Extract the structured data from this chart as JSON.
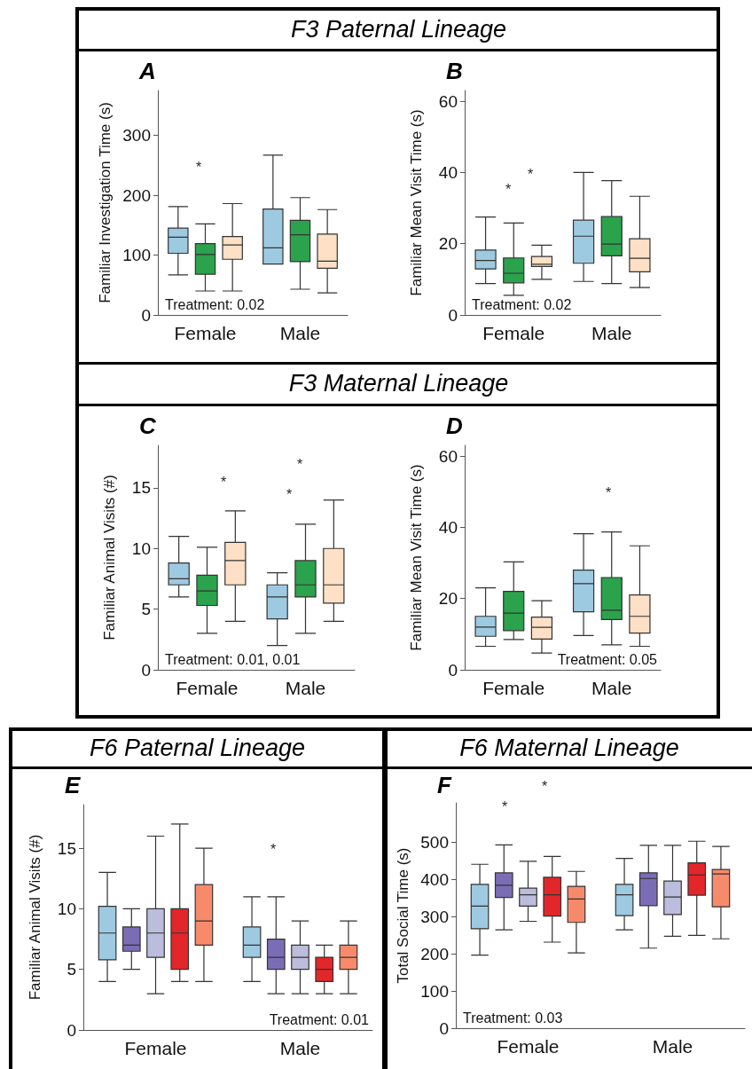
{
  "chart_data": [
    {
      "type": "box",
      "title": "F3 Paternal Lineage",
      "subtitle": "A",
      "ylabel": "Familiar Investigation Time (s)",
      "categories": [
        "Female",
        "Male"
      ],
      "ylim": [
        0,
        375
      ],
      "yticks": [
        0,
        100,
        200,
        300
      ],
      "series": [
        {
          "color": "#9ecae1",
          "boxes": [
            {
              "low": 67,
              "q1": 103,
              "median": 130,
              "q3": 145,
              "high": 181
            },
            {
              "low": 85,
              "q1": 85,
              "median": 112,
              "q3": 177,
              "high": 267
            }
          ]
        },
        {
          "color": "#2ba24c",
          "boxes": [
            {
              "low": 40,
              "q1": 68,
              "median": 101,
              "q3": 119,
              "high": 152
            },
            {
              "low": 43,
              "q1": 89,
              "median": 134,
              "q3": 158,
              "high": 196
            }
          ]
        },
        {
          "color": "#fde0c5",
          "boxes": [
            {
              "low": 40,
              "q1": 93,
              "median": 117,
              "q3": 131,
              "high": 186
            },
            {
              "low": 37,
              "q1": 78,
              "median": 90,
              "q3": 135,
              "high": 176
            }
          ]
        }
      ],
      "annotations": [
        "*",
        "Treatment: 0.02"
      ]
    },
    {
      "type": "box",
      "subtitle": "B",
      "ylabel": "Familiar Mean Visit Time (s)",
      "categories": [
        "Female",
        "Male"
      ],
      "ylim": [
        0,
        63
      ],
      "yticks": [
        0,
        20,
        40,
        60
      ],
      "series": [
        {
          "color": "#9ecae1",
          "boxes": [
            {
              "low": 8.8,
              "q1": 12.9,
              "median": 15.3,
              "q3": 18.2,
              "high": 27.5
            },
            {
              "low": 9.4,
              "q1": 14.5,
              "median": 22.1,
              "q3": 26.6,
              "high": 40
            }
          ]
        },
        {
          "color": "#2ba24c",
          "boxes": [
            {
              "low": 5.5,
              "q1": 9,
              "median": 11.7,
              "q3": 16,
              "high": 25.8
            },
            {
              "low": 8.8,
              "q1": 16.6,
              "median": 19.9,
              "q3": 27.6,
              "high": 37.7
            }
          ]
        },
        {
          "color": "#fde0c5",
          "boxes": [
            {
              "low": 10,
              "q1": 13.6,
              "median": 14.2,
              "q3": 16.4,
              "high": 19.6
            },
            {
              "low": 7.7,
              "q1": 12.1,
              "median": 15.9,
              "q3": 21.4,
              "high": 33.3
            }
          ]
        }
      ],
      "annotations": [
        "*",
        "*",
        "Treatment: 0.02"
      ]
    },
    {
      "type": "box",
      "title": "F3 Maternal Lineage",
      "subtitle": "C",
      "ylabel": "Familiar Animal Visits (#)",
      "categories": [
        "Female",
        "Male"
      ],
      "ylim": [
        0,
        18.5
      ],
      "yticks": [
        0,
        5,
        10,
        15
      ],
      "series": [
        {
          "color": "#9ecae1",
          "boxes": [
            {
              "low": 6,
              "q1": 7,
              "median": 7.5,
              "q3": 8.8,
              "high": 11
            },
            {
              "low": 2,
              "q1": 4.2,
              "median": 6,
              "q3": 7,
              "high": 8
            }
          ]
        },
        {
          "color": "#2ba24c",
          "boxes": [
            {
              "low": 3,
              "q1": 5.3,
              "median": 6.5,
              "q3": 7.8,
              "high": 10.1
            },
            {
              "low": 3,
              "q1": 6,
              "median": 7,
              "q3": 9,
              "high": 12
            }
          ]
        },
        {
          "color": "#fde0c5",
          "boxes": [
            {
              "low": 4,
              "q1": 7,
              "median": 9,
              "q3": 10.5,
              "high": 13.1
            },
            {
              "low": 4,
              "q1": 5.5,
              "median": 7,
              "q3": 10,
              "high": 14
            }
          ]
        }
      ],
      "annotations": [
        "*",
        "*",
        "*",
        "Treatment: 0.01, 0.01"
      ]
    },
    {
      "type": "box",
      "subtitle": "D",
      "ylabel": "Familiar Mean Visit Time (s)",
      "categories": [
        "Female",
        "Male"
      ],
      "ylim": [
        0,
        63
      ],
      "yticks": [
        0,
        20,
        40,
        60
      ],
      "series": [
        {
          "color": "#9ecae1",
          "boxes": [
            {
              "low": 6.6,
              "q1": 9.4,
              "median": 12,
              "q3": 15,
              "high": 23
            },
            {
              "low": 9.6,
              "q1": 16.3,
              "median": 24.2,
              "q3": 28,
              "high": 38.2
            }
          ]
        },
        {
          "color": "#2ba24c",
          "boxes": [
            {
              "low": 8.5,
              "q1": 11,
              "median": 15.9,
              "q3": 22,
              "high": 30.3
            },
            {
              "low": 7,
              "q1": 14.1,
              "median": 16.7,
              "q3": 25.9,
              "high": 38.7
            }
          ]
        },
        {
          "color": "#fde0c5",
          "boxes": [
            {
              "low": 4.7,
              "q1": 8.6,
              "median": 11.9,
              "q3": 14.8,
              "high": 19.4
            },
            {
              "low": 6.6,
              "q1": 10.3,
              "median": 15,
              "q3": 21,
              "high": 34.8
            }
          ]
        }
      ],
      "annotations": [
        "*",
        "Treatment: 0.05"
      ]
    },
    {
      "type": "box",
      "title": "F6 Paternal Lineage",
      "subtitle": "E",
      "ylabel": "Familiar Animal Visits (#)",
      "categories": [
        "Female",
        "Male"
      ],
      "ylim": [
        0,
        18.6
      ],
      "yticks": [
        0,
        5,
        10,
        15
      ],
      "series": [
        {
          "color": "#9ecae1",
          "boxes": [
            {
              "low": 4,
              "q1": 5.8,
              "median": 8,
              "q3": 10.2,
              "high": 13
            },
            {
              "low": 4,
              "q1": 6,
              "median": 7,
              "q3": 8.5,
              "high": 11
            }
          ]
        },
        {
          "color": "#7b6db5",
          "boxes": [
            {
              "low": 5,
              "q1": 6.5,
              "median": 7,
              "q3": 8.5,
              "high": 10
            },
            {
              "low": 3,
              "q1": 5,
              "median": 6,
              "q3": 7.5,
              "high": 11
            }
          ]
        },
        {
          "color": "#bcbddc",
          "boxes": [
            {
              "low": 3,
              "q1": 6,
              "median": 8,
              "q3": 10,
              "high": 16
            },
            {
              "low": 3,
              "q1": 5,
              "median": 6,
              "q3": 7,
              "high": 9
            }
          ]
        },
        {
          "color": "#e3262a",
          "boxes": [
            {
              "low": 4,
              "q1": 5,
              "median": 8,
              "q3": 10,
              "high": 17
            },
            {
              "low": 3,
              "q1": 4,
              "median": 5,
              "q3": 6,
              "high": 7
            }
          ]
        },
        {
          "color": "#f88a6c",
          "boxes": [
            {
              "low": 4,
              "q1": 7,
              "median": 9,
              "q3": 12,
              "high": 15
            },
            {
              "low": 3,
              "q1": 5,
              "median": 6,
              "q3": 7,
              "high": 9
            }
          ]
        }
      ],
      "annotations": [
        "*",
        "Treatment: 0.01"
      ]
    },
    {
      "type": "box",
      "title": "F6 Maternal Lineage",
      "subtitle": "F",
      "ylabel": "Total Social Time (s)",
      "categories": [
        "Female",
        "Male"
      ],
      "ylim": [
        0,
        605
      ],
      "yticks": [
        0,
        100,
        200,
        300,
        400,
        500
      ],
      "series": [
        {
          "color": "#9ecae1",
          "boxes": [
            {
              "low": 196,
              "q1": 267,
              "median": 328,
              "q3": 386,
              "high": 440
            },
            {
              "low": 264,
              "q1": 302,
              "median": 358,
              "q3": 386,
              "high": 456
            }
          ]
        },
        {
          "color": "#7b6db5",
          "boxes": [
            {
              "low": 264,
              "q1": 351,
              "median": 384,
              "q3": 417,
              "high": 492
            },
            {
              "low": 215,
              "q1": 329,
              "median": 402,
              "q3": 417,
              "high": 491
            }
          ]
        },
        {
          "color": "#bcbddc",
          "boxes": [
            {
              "low": 287,
              "q1": 328,
              "median": 358,
              "q3": 376,
              "high": 448
            },
            {
              "low": 247,
              "q1": 305,
              "median": 352,
              "q3": 395,
              "high": 491
            }
          ]
        },
        {
          "color": "#e3262a",
          "boxes": [
            {
              "low": 231,
              "q1": 301,
              "median": 358,
              "q3": 405,
              "high": 461
            },
            {
              "low": 249,
              "q1": 357,
              "median": 411,
              "q3": 444,
              "high": 502
            }
          ]
        },
        {
          "color": "#f88a6c",
          "boxes": [
            {
              "low": 202,
              "q1": 284,
              "median": 347,
              "q3": 381,
              "high": 421
            },
            {
              "low": 240,
              "q1": 326,
              "median": 414,
              "q3": 426,
              "high": 488
            }
          ]
        }
      ],
      "annotations": [
        "*",
        "*",
        "Treatment: 0.03"
      ]
    }
  ]
}
